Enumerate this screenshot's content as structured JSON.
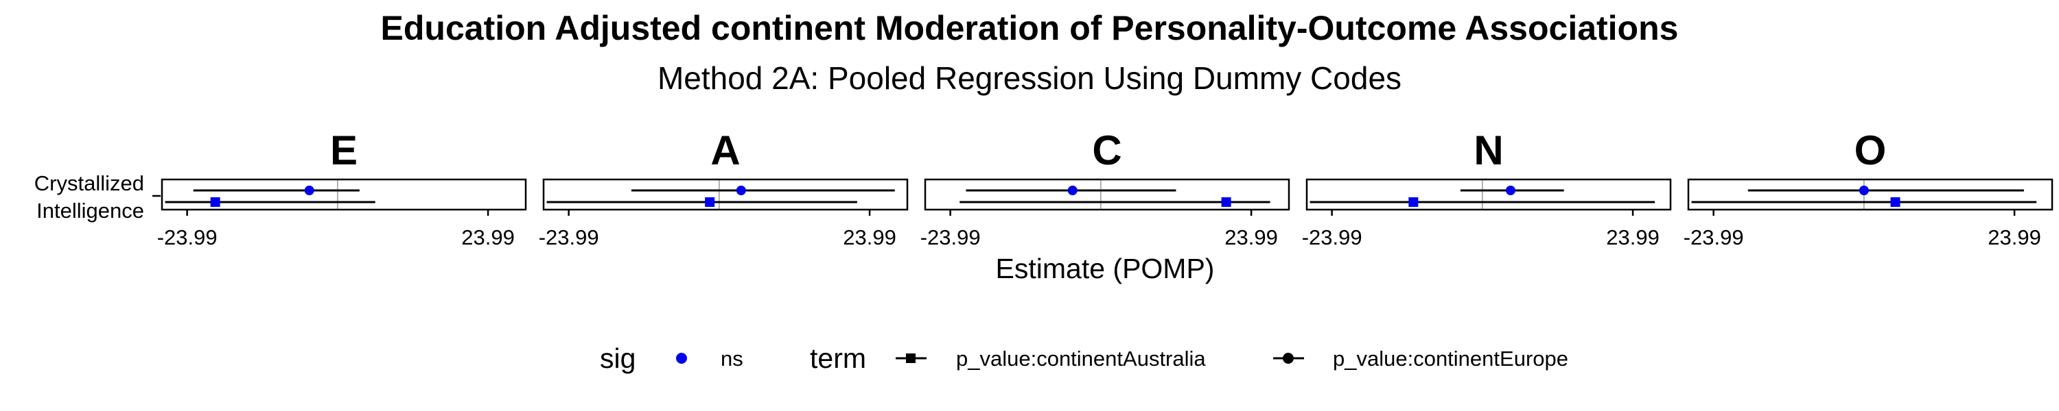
{
  "chart_data": {
    "type": "forest",
    "title": "Education Adjusted continent Moderation of Personality-Outcome Associations",
    "subtitle": "Method 2A: Pooled Regression Using Dummy Codes",
    "xlabel": "Estimate (POMP)",
    "xlim": [
      -28,
      30
    ],
    "x_ticks": [
      -23.99,
      23.99
    ],
    "x_tick_labels": [
      "-23.99",
      "23.99"
    ],
    "y_categories": [
      "Crystallized Intelligence"
    ],
    "y_label_lines": [
      "Crystallized",
      "Intelligence"
    ],
    "reference_line": 0,
    "point_color": "#0000ee",
    "facets": [
      {
        "label": "E",
        "points": [
          {
            "term": "p_value:continentEurope",
            "estimate": -4.5,
            "lower": -23.0,
            "upper": 3.5,
            "sig": "ns"
          },
          {
            "term": "p_value:continentAustralia",
            "estimate": -19.5,
            "lower": -27.5,
            "upper": 6.0,
            "sig": "ns"
          }
        ]
      },
      {
        "label": "A",
        "points": [
          {
            "term": "p_value:continentEurope",
            "estimate": 3.5,
            "lower": -14.0,
            "upper": 28.0,
            "sig": "ns"
          },
          {
            "term": "p_value:continentAustralia",
            "estimate": -1.5,
            "lower": -27.5,
            "upper": 22.0,
            "sig": "ns"
          }
        ]
      },
      {
        "label": "C",
        "points": [
          {
            "term": "p_value:continentEurope",
            "estimate": -4.5,
            "lower": -21.5,
            "upper": 12.0,
            "sig": "ns"
          },
          {
            "term": "p_value:continentAustralia",
            "estimate": 20.0,
            "lower": -22.5,
            "upper": 27.0,
            "sig": "ns"
          }
        ]
      },
      {
        "label": "N",
        "points": [
          {
            "term": "p_value:continentEurope",
            "estimate": 4.5,
            "lower": -3.5,
            "upper": 13.0,
            "sig": "ns"
          },
          {
            "term": "p_value:continentAustralia",
            "estimate": -11.0,
            "lower": -27.5,
            "upper": 27.5,
            "sig": "ns"
          }
        ]
      },
      {
        "label": "O",
        "points": [
          {
            "term": "p_value:continentEurope",
            "estimate": 0.0,
            "lower": -18.5,
            "upper": 25.5,
            "sig": "ns"
          },
          {
            "term": "p_value:continentAustralia",
            "estimate": 5.0,
            "lower": -27.5,
            "upper": 27.5,
            "sig": "ns"
          }
        ]
      }
    ],
    "legend": {
      "position": "bottom",
      "sig_title": "sig",
      "sig_items": [
        {
          "label": "ns",
          "color": "#0000ee"
        }
      ],
      "term_title": "term",
      "term_items": [
        {
          "label": "p_value:continentAustralia",
          "shape": "square"
        },
        {
          "label": "p_value:continentEurope",
          "shape": "circle"
        }
      ]
    }
  }
}
